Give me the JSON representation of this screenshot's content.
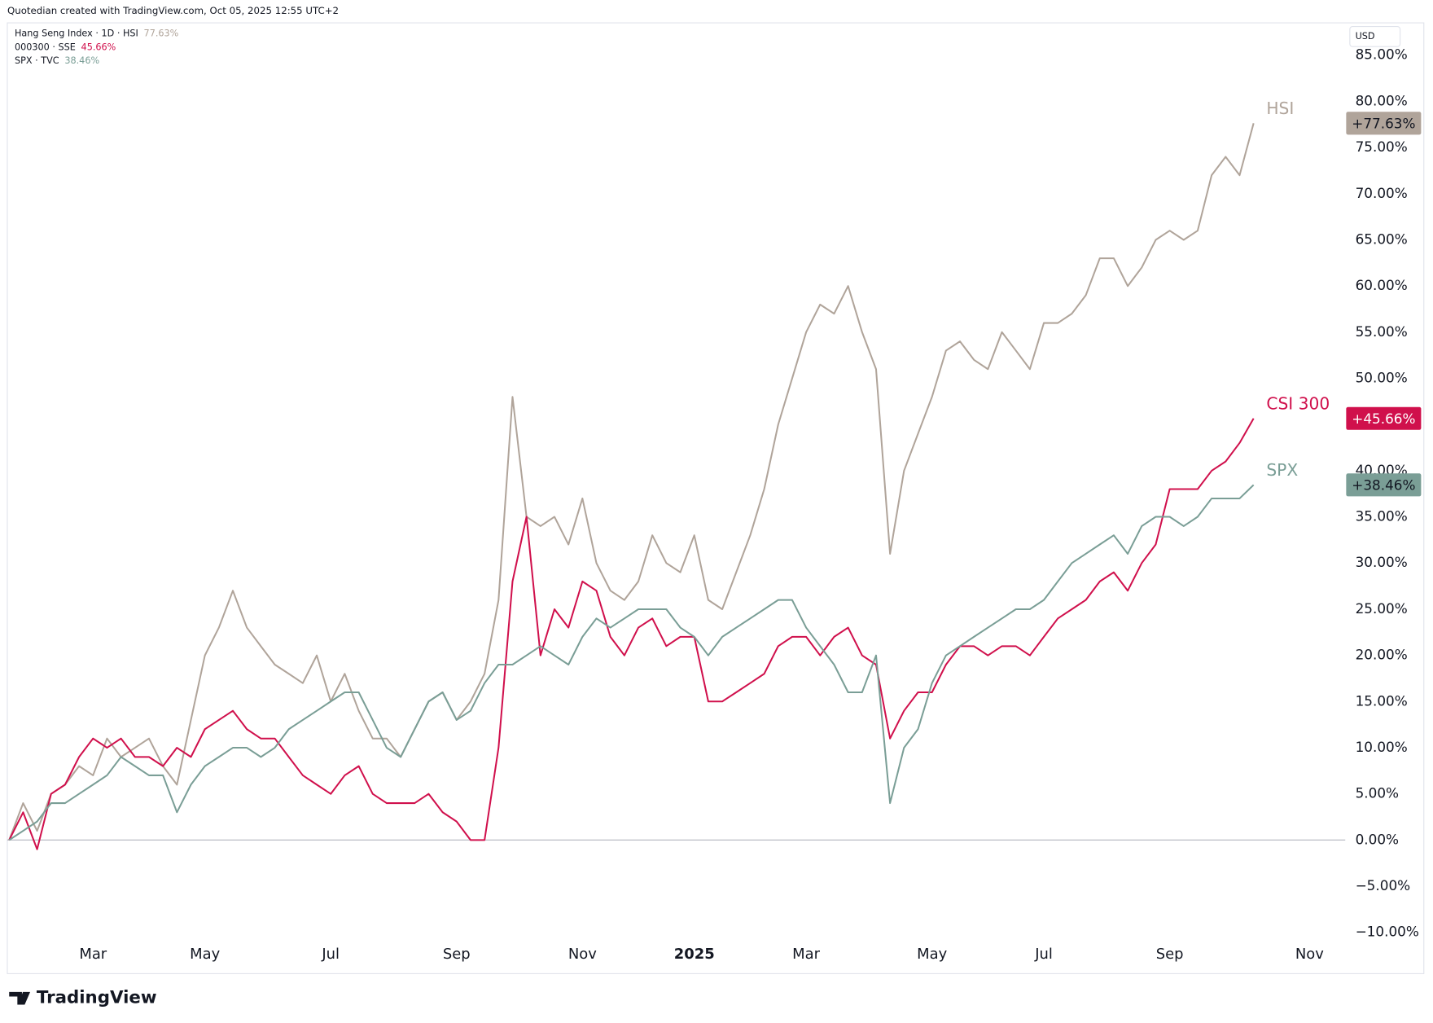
{
  "header": "Quotedian created with TradingView.com, Oct 05, 2025 12:55 UTC+2",
  "currency": "USD",
  "brand": "TradingView",
  "chart_data": {
    "type": "line",
    "categories": [
      null,
      null,
      null,
      null,
      null,
      null,
      "Mar",
      null,
      null,
      null,
      null,
      null,
      null,
      null,
      "May",
      null,
      null,
      null,
      null,
      null,
      null,
      null,
      null,
      "Jul",
      null,
      null,
      null,
      null,
      null,
      null,
      null,
      null,
      "Sep",
      null,
      null,
      null,
      null,
      null,
      null,
      null,
      null,
      "Nov",
      null,
      null,
      null,
      null,
      null,
      null,
      null,
      "2025",
      null,
      null,
      null,
      null,
      null,
      null,
      null,
      "Mar",
      null,
      null,
      null,
      null,
      null,
      null,
      null,
      null,
      "May",
      null,
      null,
      null,
      null,
      null,
      null,
      null,
      "Jul",
      null,
      null,
      null,
      null,
      null,
      null,
      null,
      null,
      "Sep",
      null,
      null,
      null,
      null,
      null,
      null,
      null,
      null,
      null,
      "Nov",
      null,
      null
    ],
    "series": [
      {
        "name": "Hang Seng Index · 1D · HSI",
        "legend_value": "77.63%",
        "label": "HSI",
        "end_badge": "+77.63%",
        "color": "#b0a49a",
        "badge_text_color": "#131722",
        "values": [
          0,
          4,
          1,
          5,
          6,
          8,
          7,
          11,
          9,
          10,
          11,
          8,
          6,
          13,
          20,
          23,
          27,
          23,
          21,
          19,
          18,
          17,
          20,
          15,
          18,
          14,
          11,
          11,
          9,
          12,
          15,
          16,
          13,
          15,
          18,
          26,
          48,
          35,
          34,
          35,
          32,
          37,
          30,
          27,
          26,
          28,
          33,
          30,
          29,
          33,
          26,
          25,
          29,
          33,
          38,
          45,
          50,
          55,
          58,
          57,
          60,
          55,
          51,
          31,
          40,
          44,
          48,
          53,
          54,
          52,
          51,
          55,
          53,
          51,
          56,
          56,
          57,
          59,
          63,
          63,
          60,
          62,
          65,
          66,
          65,
          66,
          72,
          74,
          72,
          77.63,
          null,
          null,
          null,
          null,
          null,
          null
        ]
      },
      {
        "name": "000300 · SSE",
        "legend_value": "45.66%",
        "label": "CSI 300",
        "end_badge": "+45.66%",
        "color": "#d0104c",
        "badge_text_color": "#ffffff",
        "values": [
          0,
          3,
          -1,
          5,
          6,
          9,
          11,
          10,
          11,
          9,
          9,
          8,
          10,
          9,
          12,
          13,
          14,
          12,
          11,
          11,
          9,
          7,
          6,
          5,
          7,
          8,
          5,
          4,
          4,
          4,
          5,
          3,
          2,
          0,
          0,
          10,
          28,
          35,
          20,
          25,
          23,
          28,
          27,
          22,
          20,
          23,
          24,
          21,
          22,
          22,
          15,
          15,
          16,
          17,
          18,
          21,
          22,
          22,
          20,
          22,
          23,
          20,
          19,
          11,
          14,
          16,
          16,
          19,
          21,
          21,
          20,
          21,
          21,
          20,
          22,
          24,
          25,
          26,
          28,
          29,
          27,
          30,
          32,
          38,
          38,
          38,
          40,
          41,
          43,
          45.66,
          null,
          null,
          null,
          null,
          null,
          null
        ]
      },
      {
        "name": "SPX · TVC",
        "legend_value": "38.46%",
        "label": "SPX",
        "end_badge": "+38.46%",
        "color": "#7a9e96",
        "badge_text_color": "#131722",
        "values": [
          0,
          1,
          2,
          4,
          4,
          5,
          6,
          7,
          9,
          8,
          7,
          7,
          3,
          6,
          8,
          9,
          10,
          10,
          9,
          10,
          12,
          13,
          14,
          15,
          16,
          16,
          13,
          10,
          9,
          12,
          15,
          16,
          13,
          14,
          17,
          19,
          19,
          20,
          21,
          20,
          19,
          22,
          24,
          23,
          24,
          25,
          25,
          25,
          23,
          22,
          20,
          22,
          23,
          24,
          25,
          26,
          26,
          23,
          21,
          19,
          16,
          16,
          20,
          4,
          10,
          12,
          17,
          20,
          21,
          22,
          23,
          24,
          25,
          25,
          26,
          28,
          30,
          31,
          32,
          33,
          31,
          34,
          35,
          35,
          34,
          35,
          37,
          37,
          37,
          38.46,
          null,
          null,
          null,
          null,
          null,
          null
        ]
      }
    ],
    "ylim": [
      -11.5,
      88.5
    ],
    "yticks": [
      {
        "value": 85,
        "label": "85.00%"
      },
      {
        "value": 80,
        "label": "80.00%"
      },
      {
        "value": 75,
        "label": "75.00%"
      },
      {
        "value": 70,
        "label": "70.00%"
      },
      {
        "value": 65,
        "label": "65.00%"
      },
      {
        "value": 60,
        "label": "60.00%"
      },
      {
        "value": 55,
        "label": "55.00%"
      },
      {
        "value": 50,
        "label": "50.00%"
      },
      {
        "value": 45,
        "label": "45.00%"
      },
      {
        "value": 40,
        "label": "40.00%"
      },
      {
        "value": 35,
        "label": "35.00%"
      },
      {
        "value": 30,
        "label": "30.00%"
      },
      {
        "value": 25,
        "label": "25.00%"
      },
      {
        "value": 20,
        "label": "20.00%"
      },
      {
        "value": 15,
        "label": "15.00%"
      },
      {
        "value": 10,
        "label": "10.00%"
      },
      {
        "value": 5,
        "label": "5.00%"
      },
      {
        "value": 0,
        "label": "0.00%"
      },
      {
        "value": -5,
        "label": "−5.00%"
      },
      {
        "value": -10,
        "label": "−10.00%"
      }
    ],
    "baseline": 0,
    "grid": false
  }
}
